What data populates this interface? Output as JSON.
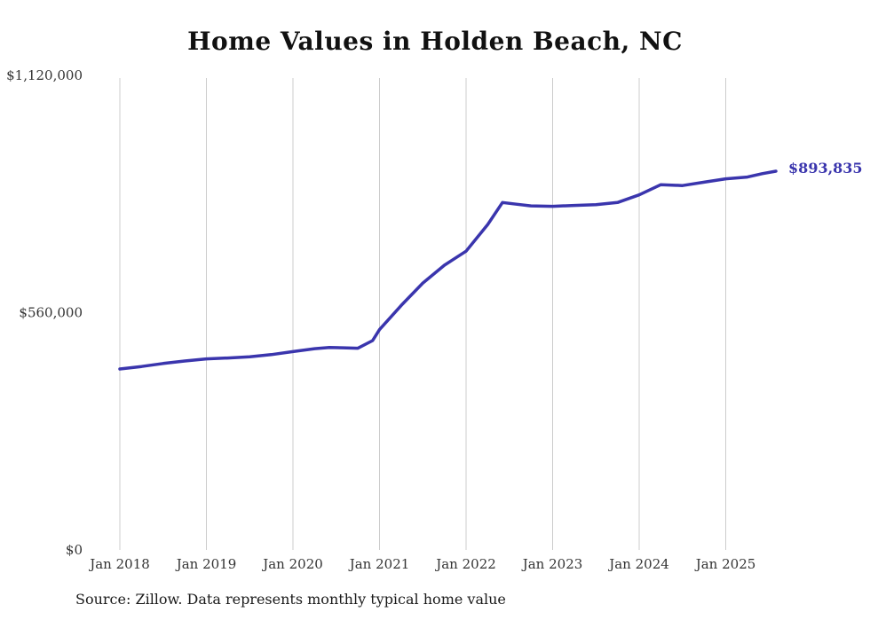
{
  "title": "Home Values in Holden Beach, NC",
  "source_note": "Source: Zillow. Data represents monthly typical home value",
  "colors": {
    "line": "#3a35ad",
    "grid": "#cccccc",
    "tick_text": "#333333",
    "title_text": "#111111",
    "end_label": "#3a35ad"
  },
  "chart_data": {
    "type": "line",
    "title": "Home Values in Holden Beach, NC",
    "xlabel": "",
    "ylabel": "",
    "ylim": [
      0,
      1120000
    ],
    "grid": "vertical-only",
    "legend": "none",
    "series_name": "Typical home value",
    "x": [
      2018.0,
      2018.25,
      2018.5,
      2018.75,
      2019.0,
      2019.25,
      2019.5,
      2019.75,
      2020.0,
      2020.25,
      2020.42,
      2020.58,
      2020.75,
      2020.92,
      2021.0,
      2021.25,
      2021.5,
      2021.75,
      2022.0,
      2022.25,
      2022.42,
      2022.58,
      2022.75,
      2023.0,
      2023.25,
      2023.5,
      2023.75,
      2024.0,
      2024.25,
      2024.5,
      2024.75,
      2025.0,
      2025.25,
      2025.42,
      2025.58
    ],
    "values": [
      427000,
      433000,
      440000,
      446000,
      451000,
      453000,
      456000,
      461000,
      468000,
      475000,
      478000,
      477000,
      476000,
      494000,
      520000,
      577000,
      630000,
      672000,
      705000,
      768000,
      820000,
      816000,
      812000,
      811000,
      813000,
      815000,
      820000,
      838000,
      862000,
      860000,
      868000,
      876000,
      880000,
      888000,
      893835
    ],
    "final_value": 893835,
    "end_label": "$893,835",
    "x_ticks": [
      {
        "t": 2018,
        "label": "Jan 2018"
      },
      {
        "t": 2019,
        "label": "Jan 2019"
      },
      {
        "t": 2020,
        "label": "Jan 2020"
      },
      {
        "t": 2021,
        "label": "Jan 2021"
      },
      {
        "t": 2022,
        "label": "Jan 2022"
      },
      {
        "t": 2023,
        "label": "Jan 2023"
      },
      {
        "t": 2024,
        "label": "Jan 2024"
      },
      {
        "t": 2025,
        "label": "Jan 2025"
      }
    ],
    "y_ticks": [
      {
        "v": 0,
        "label": "$0"
      },
      {
        "v": 560000,
        "label": "$560,000"
      },
      {
        "v": 1120000,
        "label": "$1,120,000"
      }
    ]
  }
}
